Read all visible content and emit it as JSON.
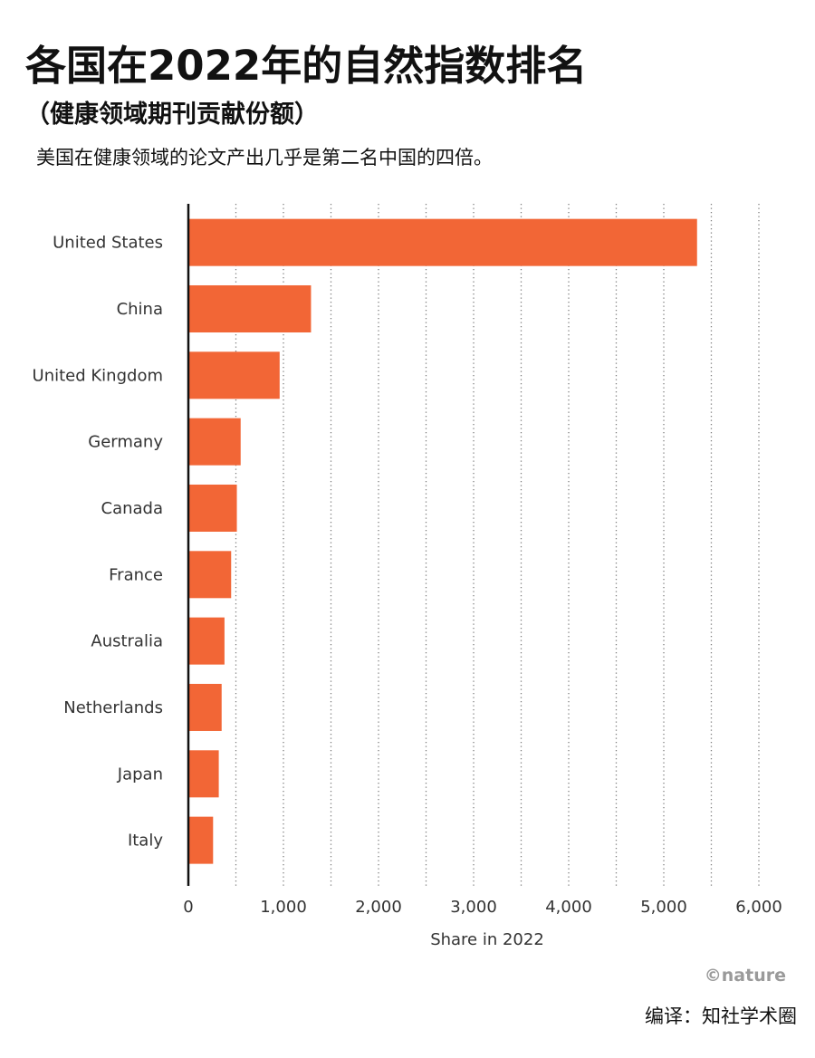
{
  "chart_data": {
    "type": "bar",
    "orientation": "horizontal",
    "title": "各国在2022年的自然指数排名",
    "subtitle": "（健康领域期刊贡献份额）",
    "caption": "美国在健康领域的论文产出几乎是第二名中国的四倍。",
    "categories": [
      "United States",
      "China",
      "United Kingdom",
      "Germany",
      "Canada",
      "France",
      "Australia",
      "Netherlands",
      "Japan",
      "Italy"
    ],
    "values": [
      5350,
      1290,
      960,
      550,
      510,
      450,
      380,
      350,
      320,
      260
    ],
    "xlabel": "Share in 2022",
    "xlim": [
      0,
      6000
    ],
    "xticks": [
      0,
      1000,
      2000,
      3000,
      4000,
      5000,
      6000
    ],
    "xtick_labels": [
      "0",
      "1,000",
      "2,000",
      "3,000",
      "4,000",
      "5,000",
      "6,000"
    ],
    "grid": true,
    "grid_interval": 500,
    "bar_color": "#F26636"
  },
  "footer": {
    "logo": "©nature",
    "credit": "编译：知社学术圈"
  }
}
